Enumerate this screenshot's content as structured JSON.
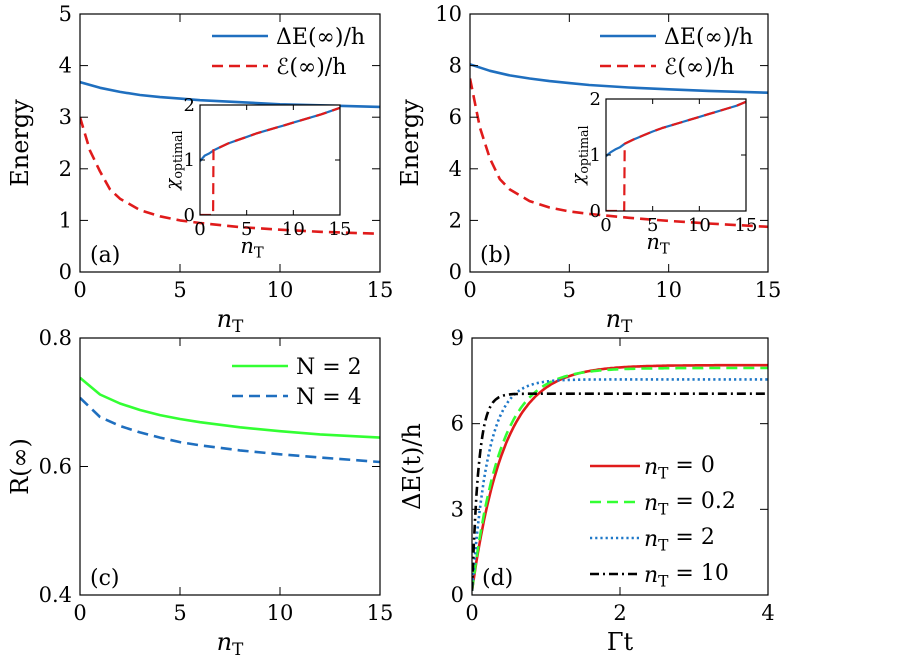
{
  "colors": {
    "blue": "#1f6fbf",
    "red": "#e01b1b",
    "green": "#33ff33",
    "dblue": "#1f6fbf",
    "dotblue": "#1f78c8",
    "black": "#000000"
  },
  "chart_data": [
    {
      "id": "a",
      "type": "line",
      "panel_label": "(a)",
      "xlabel": "n_T",
      "ylabel": "Energy",
      "xlim": [
        0,
        15
      ],
      "ylim": [
        0,
        5
      ],
      "xticks": [
        "0",
        "5",
        "10",
        "15"
      ],
      "yticks": [
        "0",
        "1",
        "2",
        "3",
        "4",
        "5"
      ],
      "legend": [
        "ΔE(∞)/h",
        "ℰ(∞)/h"
      ],
      "series": [
        {
          "name": "ΔE(∞)/h",
          "style": "solid",
          "color": "#1f6fbf",
          "x": [
            0,
            1,
            2,
            3,
            4,
            5,
            6,
            8,
            10,
            12,
            15
          ],
          "y": [
            3.68,
            3.57,
            3.49,
            3.43,
            3.39,
            3.36,
            3.33,
            3.29,
            3.25,
            3.23,
            3.2
          ]
        },
        {
          "name": "ℰ(∞)/h",
          "style": "dashed",
          "color": "#e01b1b",
          "x": [
            0,
            0.5,
            1,
            1.5,
            2,
            3,
            4,
            5,
            6,
            8,
            10,
            12,
            15
          ],
          "y": [
            3.0,
            2.35,
            1.95,
            1.6,
            1.42,
            1.2,
            1.08,
            1.0,
            0.95,
            0.87,
            0.82,
            0.78,
            0.74
          ]
        }
      ],
      "inset": {
        "ylabel": "χ_optimal",
        "xlabel": "n_T",
        "xlim": [
          0,
          15
        ],
        "ylim": [
          0,
          2
        ],
        "xticks": [
          "0",
          "5",
          "10",
          "15"
        ],
        "yticks": [
          "0",
          "1",
          "2"
        ],
        "series": [
          {
            "name": "blue",
            "style": "solid",
            "color": "#1f6fbf",
            "x": [
              0,
              0.5,
              1,
              1.5,
              2,
              3,
              4,
              5,
              6,
              7,
              8,
              9,
              10,
              11,
              12,
              13,
              14,
              15
            ],
            "y": [
              0.98,
              1.08,
              1.12,
              1.18,
              1.22,
              1.3,
              1.36,
              1.42,
              1.48,
              1.53,
              1.58,
              1.63,
              1.68,
              1.73,
              1.78,
              1.83,
              1.89,
              1.95
            ]
          },
          {
            "name": "red",
            "style": "dashed",
            "color": "#e01b1b",
            "x": [
              0,
              0.5,
              1,
              1.4,
              1.45,
              2,
              3,
              4,
              5,
              6,
              7,
              8,
              9,
              10,
              11,
              12,
              13,
              14,
              15
            ],
            "y": [
              0,
              0,
              0,
              0,
              1.2,
              1.22,
              1.3,
              1.36,
              1.42,
              1.48,
              1.53,
              1.58,
              1.63,
              1.68,
              1.73,
              1.78,
              1.83,
              1.89,
              1.95
            ]
          }
        ]
      }
    },
    {
      "id": "b",
      "type": "line",
      "panel_label": "(b)",
      "xlabel": "n_T",
      "ylabel": "Energy",
      "xlim": [
        0,
        15
      ],
      "ylim": [
        0,
        10
      ],
      "xticks": [
        "0",
        "5",
        "10",
        "15"
      ],
      "yticks": [
        "0",
        "2",
        "4",
        "6",
        "8",
        "10"
      ],
      "legend": [
        "ΔE(∞)/h",
        "ℰ(∞)/h"
      ],
      "series": [
        {
          "name": "ΔE(∞)/h",
          "style": "solid",
          "color": "#1f6fbf",
          "x": [
            0,
            1,
            2,
            3,
            4,
            5,
            6,
            8,
            10,
            12,
            15
          ],
          "y": [
            8.05,
            7.8,
            7.62,
            7.5,
            7.4,
            7.32,
            7.25,
            7.15,
            7.08,
            7.02,
            6.95
          ]
        },
        {
          "name": "ℰ(∞)/h",
          "style": "dashed",
          "color": "#e01b1b",
          "x": [
            0,
            0.5,
            1,
            1.5,
            2,
            3,
            4,
            5,
            6,
            8,
            10,
            12,
            15
          ],
          "y": [
            7.5,
            5.6,
            4.4,
            3.6,
            3.2,
            2.75,
            2.5,
            2.35,
            2.25,
            2.1,
            1.98,
            1.88,
            1.75
          ]
        }
      ],
      "inset": {
        "ylabel": "χ_optimal",
        "xlabel": "n_T",
        "xlim": [
          0,
          15
        ],
        "ylim": [
          0,
          2
        ],
        "xticks": [
          "0",
          "5",
          "10",
          "15"
        ],
        "yticks": [
          "0",
          "1",
          "2"
        ],
        "series": [
          {
            "name": "blue",
            "style": "solid",
            "color": "#1f6fbf",
            "x": [
              0,
              0.5,
              1,
              1.5,
              2,
              3,
              4,
              5,
              6,
              7,
              8,
              9,
              10,
              11,
              12,
              13,
              14,
              15
            ],
            "y": [
              0.98,
              1.05,
              1.1,
              1.14,
              1.2,
              1.28,
              1.35,
              1.42,
              1.48,
              1.53,
              1.58,
              1.63,
              1.68,
              1.73,
              1.78,
              1.83,
              1.88,
              1.95
            ]
          },
          {
            "name": "red",
            "style": "dashed",
            "color": "#e01b1b",
            "x": [
              0,
              0.5,
              1,
              1.5,
              1.95,
              2.0,
              3,
              4,
              5,
              6,
              7,
              8,
              9,
              10,
              11,
              12,
              13,
              14,
              15
            ],
            "y": [
              0,
              0,
              0,
              0,
              0,
              1.2,
              1.28,
              1.35,
              1.42,
              1.48,
              1.53,
              1.58,
              1.63,
              1.68,
              1.73,
              1.78,
              1.83,
              1.88,
              1.95
            ]
          }
        ]
      }
    },
    {
      "id": "c",
      "type": "line",
      "panel_label": "(c)",
      "xlabel": "n_T",
      "ylabel": "R(∞)",
      "xlim": [
        0,
        15
      ],
      "ylim": [
        0.4,
        0.8
      ],
      "xticks": [
        "0",
        "5",
        "10",
        "15"
      ],
      "yticks": [
        "0.4",
        "0.6",
        "0.8"
      ],
      "legend": [
        "N = 2",
        "N = 4"
      ],
      "series": [
        {
          "name": "N = 2",
          "style": "solid",
          "color": "#33ff33",
          "x": [
            0,
            1,
            2,
            3,
            4,
            5,
            6,
            8,
            10,
            12,
            15
          ],
          "y": [
            0.738,
            0.712,
            0.698,
            0.688,
            0.68,
            0.674,
            0.669,
            0.661,
            0.655,
            0.65,
            0.645
          ]
        },
        {
          "name": "N = 4",
          "style": "dashed",
          "color": "#1f6fbf",
          "x": [
            0,
            1,
            2,
            3,
            4,
            5,
            6,
            8,
            10,
            12,
            15
          ],
          "y": [
            0.707,
            0.677,
            0.663,
            0.653,
            0.645,
            0.638,
            0.633,
            0.625,
            0.619,
            0.614,
            0.607
          ]
        }
      ]
    },
    {
      "id": "d",
      "type": "line",
      "panel_label": "(d)",
      "xlabel": "Γt",
      "ylabel": "ΔE(t)/h",
      "xlim": [
        0,
        4
      ],
      "ylim": [
        0,
        9
      ],
      "xticks": [
        "0",
        "2",
        "4"
      ],
      "yticks": [
        "0",
        "3",
        "6",
        "9"
      ],
      "legend": [
        "n_T = 0",
        "n_T = 0.2",
        "n_T = 2",
        "n_T = 10"
      ],
      "series": [
        {
          "name": "n_T = 0",
          "style": "solid",
          "color": "#e01b1b",
          "asymptote": 8.05,
          "rate": 2.3
        },
        {
          "name": "n_T = 0.2",
          "style": "dashed",
          "color": "#33ff33",
          "asymptote": 7.95,
          "rate": 2.6
        },
        {
          "name": "n_T = 2",
          "style": "dotted",
          "color": "#1f78c8",
          "asymptote": 7.55,
          "rate": 4.6
        },
        {
          "name": "n_T = 10",
          "style": "dashdot",
          "color": "#000000",
          "asymptote": 7.05,
          "rate": 11.0
        }
      ]
    }
  ]
}
